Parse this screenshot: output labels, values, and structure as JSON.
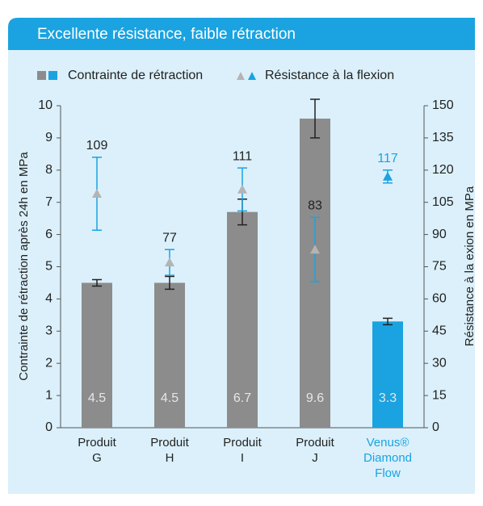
{
  "chart_data": {
    "type": "bar_triangle",
    "title": "Excellente résistance, faible rétraction",
    "categories": [
      [
        "Produit",
        "G"
      ],
      [
        "Produit",
        "H"
      ],
      [
        "Produit",
        "I"
      ],
      [
        "Produit",
        "J"
      ],
      [
        "Venus®",
        "Diamond",
        "Flow"
      ]
    ],
    "category_colors": [
      "#222222",
      "#222222",
      "#222222",
      "#222222",
      "#1aa3e0"
    ],
    "y_label": "Contrainte de rétraction après 24h en MPa",
    "y2_label": "Résistance à la  exion en MPa",
    "series": [
      {
        "name": "Contrainte de rétraction",
        "axis": "y",
        "values": [
          4.5,
          4.5,
          6.7,
          9.6,
          3.3
        ],
        "errors": [
          0.1,
          0.2,
          0.4,
          0.6,
          0.1
        ],
        "colors": [
          "#8c8c8c",
          "#8c8c8c",
          "#8c8c8c",
          "#8c8c8c",
          "#1aa3e0"
        ],
        "error_color": "#222222"
      },
      {
        "name": "Résistance à la flexion",
        "axis": "y2",
        "values": [
          109,
          77,
          111,
          83,
          117
        ],
        "errors": [
          17,
          6,
          10,
          15,
          3
        ],
        "colors": [
          "#b4b4b4",
          "#b4b4b4",
          "#b4b4b4",
          "#b4b4b4",
          "#1aa3e0"
        ],
        "error_color": "#1aa3e0",
        "label_colors": [
          "#222222",
          "#222222",
          "#222222",
          "#222222",
          "#1aa3e0"
        ]
      }
    ],
    "ylim": [
      0,
      10
    ],
    "yticks": [
      0,
      1,
      2,
      3,
      4,
      5,
      6,
      7,
      8,
      9,
      10
    ],
    "y2lim": [
      0,
      150
    ],
    "y2ticks": [
      0,
      15,
      30,
      45,
      60,
      75,
      90,
      105,
      120,
      135,
      150
    ],
    "grid": false,
    "legend": "top"
  }
}
